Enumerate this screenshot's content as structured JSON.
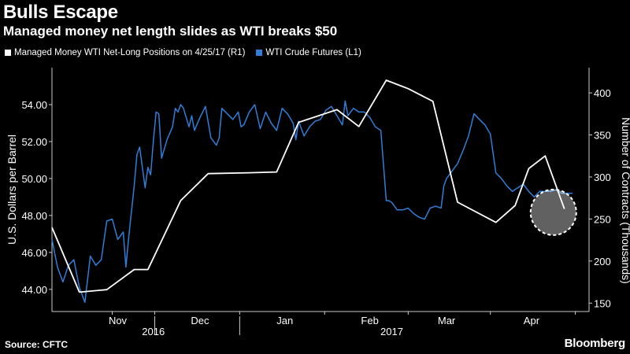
{
  "header": {
    "title": "Bulls Escape",
    "subtitle": "Managed money net length slides as WTI breaks $50"
  },
  "footer": {
    "source": "Source: CFTC",
    "brand": "Bloomberg"
  },
  "colors": {
    "background": "#000000",
    "wti_line": "#2f7ed8",
    "managed_line": "#ffffff",
    "axis": "#cccccc"
  },
  "chart_data": {
    "type": "line",
    "title": "Bulls Escape",
    "subtitle": "Managed money net length slides as WTI breaks $50",
    "left_axis": {
      "label": "U.S. Dollars per Barrel",
      "range": [
        42.8,
        56.0
      ],
      "ticks": [
        44,
        46,
        48,
        50,
        52,
        54
      ],
      "tick_labels": [
        "44.00",
        "46.00",
        "48.00",
        "50.00",
        "52.00",
        "54.00"
      ]
    },
    "right_axis": {
      "label": "Number of Contracts (Thousands)",
      "range": [
        140,
        430
      ],
      "ticks": [
        150,
        200,
        250,
        300,
        350,
        400
      ],
      "tick_labels": [
        "150",
        "200",
        "250",
        "300",
        "350",
        "400"
      ]
    },
    "x_axis": {
      "month_labels": [
        "Nov",
        "Dec",
        "Jan",
        "Feb",
        "Mar",
        "Apr"
      ],
      "month_positions": [
        12,
        42,
        73,
        104,
        132,
        163
      ],
      "year_labels": [
        "2016",
        "2017"
      ],
      "year_positions": [
        25,
        112
      ],
      "year_dividers": [
        25.5,
        56.5
      ],
      "range": [
        -12,
        184
      ]
    },
    "legend": [
      {
        "label": "Managed Money WTI Net-Long Positions  on 4/25/17 (R1)",
        "color": "#ffffff"
      },
      {
        "label": "WTI Crude Futures  (L1)",
        "color": "#2f7ed8"
      }
    ],
    "series": [
      {
        "name": "WTI Crude Futures (L1)",
        "axis": "left",
        "color": "#2f7ed8",
        "x": [
          -12,
          -10,
          -8,
          -6,
          -4,
          -2,
          0,
          2,
          4,
          6,
          8,
          10,
          12,
          14,
          15,
          16,
          18,
          19,
          20,
          22,
          23,
          24,
          25,
          26,
          27,
          28,
          30,
          32,
          33,
          34,
          35,
          36,
          38,
          39,
          40,
          42,
          44,
          46,
          48,
          49,
          50,
          52,
          54,
          56,
          57,
          58,
          60,
          62,
          64,
          66,
          68,
          70,
          72,
          74,
          76,
          77,
          78,
          80,
          82,
          84,
          86,
          88,
          90,
          92,
          94,
          95,
          96,
          98,
          100,
          102,
          104,
          106,
          108,
          110,
          111,
          112,
          114,
          116,
          118,
          120,
          122,
          124,
          126,
          128,
          130,
          131,
          132,
          134,
          136,
          138,
          140,
          142,
          144,
          146,
          148,
          150,
          152,
          154,
          156,
          158,
          160,
          162,
          164,
          166,
          168,
          170,
          172,
          174,
          176,
          178
        ],
        "values": [
          46.7,
          45.2,
          44.4,
          45.3,
          45.6,
          44.1,
          43.3,
          45.8,
          45.3,
          45.6,
          47.7,
          47.8,
          46.7,
          47.1,
          45.2,
          46.8,
          49.6,
          51.3,
          51.7,
          49.5,
          50.6,
          50.2,
          52.0,
          53.6,
          53.5,
          51.1,
          52.1,
          52.8,
          53.8,
          53.6,
          54.0,
          53.8,
          52.8,
          53.4,
          52.6,
          53.3,
          53.9,
          52.2,
          51.8,
          52.2,
          53.8,
          53.5,
          53.2,
          53.6,
          52.8,
          52.9,
          53.6,
          54.0,
          52.7,
          53.6,
          53.0,
          52.6,
          53.8,
          53.5,
          53.0,
          52.1,
          53.1,
          52.3,
          52.8,
          53.1,
          53.2,
          53.7,
          53.9,
          53.4,
          52.9,
          54.2,
          53.4,
          53.8,
          53.6,
          53.6,
          53.3,
          52.8,
          52.6,
          48.8,
          48.8,
          48.7,
          48.3,
          48.3,
          48.4,
          48.1,
          47.9,
          47.8,
          48.4,
          48.5,
          48.4,
          49.6,
          50.0,
          50.4,
          50.8,
          51.5,
          52.3,
          53.5,
          53.2,
          52.9,
          52.4,
          50.3,
          50.0,
          49.6,
          49.3,
          49.5,
          49.7,
          49.3,
          49.0,
          49.3,
          49.3,
          49.3,
          49.4,
          49.2,
          49.2,
          49.2
        ],
        "note": "WTI daily values (USD per barrel), approximate"
      },
      {
        "name": "Managed Money WTI Net-Long Positions on 4/25/17 (R1)",
        "axis": "right",
        "color": "#ffffff",
        "x": [
          -12,
          -2,
          8,
          18,
          23,
          35,
          45,
          60,
          70,
          78,
          92,
          100,
          110,
          118,
          127,
          136,
          150,
          157,
          162,
          168,
          175
        ],
        "values": [
          240,
          163,
          166,
          190,
          190,
          272,
          304,
          305,
          306,
          365,
          380,
          360,
          415,
          405,
          390,
          270,
          246,
          266,
          310,
          325,
          262
        ],
        "note": "net-long positions (thousands of contracts), approximate"
      }
    ],
    "annotations": [
      {
        "type": "circle",
        "x": 171,
        "y_right": 258,
        "style": "dashed white ring highlighting latest managed-money reading"
      }
    ]
  }
}
